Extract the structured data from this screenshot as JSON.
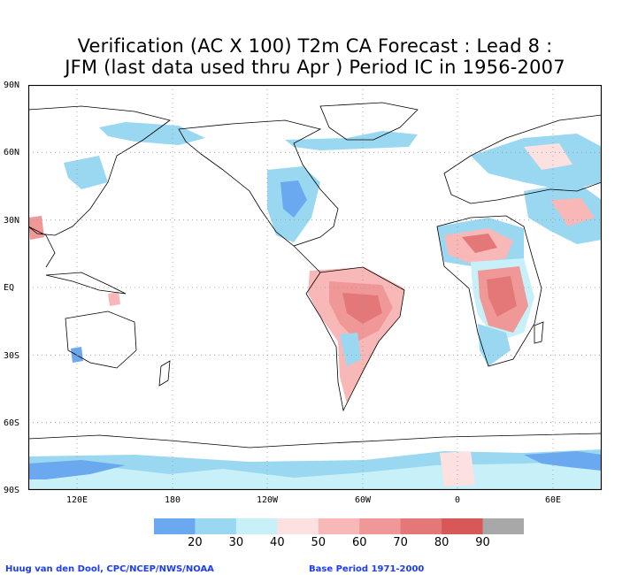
{
  "title": {
    "line1": "Verification (AC X 100) T2m CA Forecast : Lead 8 :",
    "line2": "JFM (last data used thru Apr ) Period IC in 1956-2007"
  },
  "lat_labels": [
    "90N",
    "60N",
    "30N",
    "EQ",
    "30S",
    "60S",
    "90S"
  ],
  "lon_labels": [
    "120E",
    "180",
    "120W",
    "60W",
    "0",
    "60E"
  ],
  "colorbar": {
    "levels": [
      "20",
      "30",
      "40",
      "50",
      "60",
      "70",
      "80",
      "90"
    ],
    "colors": [
      "#6aa8f0",
      "#9ad8f2",
      "#c8f0f8",
      "#fde0e0",
      "#f8b8b8",
      "#f09898",
      "#e47878",
      "#d85858",
      "#a8a8a8"
    ]
  },
  "credits": {
    "author": "Huug van den Dool, CPC/NCEP/NWS/NOAA",
    "base_period": "Base Period 1971-2000"
  }
}
